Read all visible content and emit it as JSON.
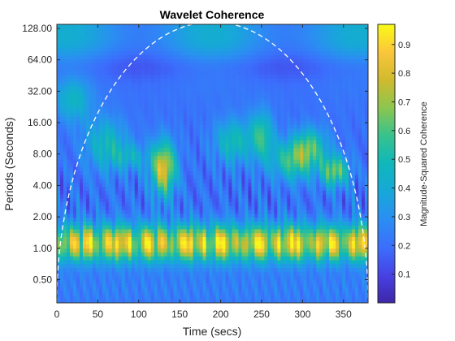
{
  "chart_data": {
    "type": "heatmap",
    "title": "Wavelet Coherence",
    "xlabel": "Time (secs)",
    "ylabel": "Periods (Seconds)",
    "xlim": [
      0,
      380
    ],
    "xticks": [
      0,
      50,
      100,
      150,
      200,
      250,
      300,
      350
    ],
    "xtick_labels": [
      "0",
      "50",
      "100",
      "150",
      "200",
      "250",
      "300",
      "350"
    ],
    "y_scale": "log2",
    "ylim": [
      0.3,
      140
    ],
    "yticks": [
      0.5,
      1,
      2,
      4,
      8,
      16,
      32,
      64,
      128
    ],
    "ytick_labels": [
      "0.50",
      "1.00",
      "2.00",
      "4.00",
      "8.00",
      "16.00",
      "32.00",
      "64.00",
      "128.00"
    ],
    "colorbar": {
      "label": "Magnitude-Squared Coherence",
      "range": [
        0,
        0.97
      ],
      "ticks": [
        0.1,
        0.2,
        0.3,
        0.4,
        0.5,
        0.6,
        0.7,
        0.8,
        0.9
      ],
      "tick_labels": [
        "0.1",
        "0.2",
        "0.3",
        "0.4",
        "0.5",
        "0.6",
        "0.7",
        "0.8",
        "0.9"
      ],
      "colormap": "parula"
    },
    "cone_of_influence": {
      "style": "dashed",
      "color": "#ffffff"
    },
    "regions": [
      {
        "period_range": [
          0.8,
          1.6
        ],
        "time_range": [
          0,
          380
        ],
        "approx_coherence": 0.85
      },
      {
        "period_range": [
          4,
          12
        ],
        "time_range": [
          115,
          145
        ],
        "approx_coherence": 0.9
      },
      {
        "period_range": [
          8,
          30
        ],
        "time_range": [
          200,
          330
        ],
        "approx_coherence": 0.5
      },
      {
        "period_range": [
          32,
          128
        ],
        "time_range": [
          0,
          380
        ],
        "approx_coherence": 0.3
      }
    ]
  },
  "colors": {
    "cmap_stops": [
      "#3e26a8",
      "#4742e4",
      "#3b6ffc",
      "#2b8ef2",
      "#17a8d8",
      "#0fb7ba",
      "#37c28e",
      "#8bc64f",
      "#d0ba2e",
      "#fbc63b",
      "#f9fb15"
    ]
  }
}
